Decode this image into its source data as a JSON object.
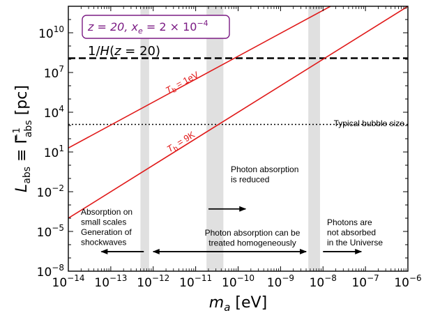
{
  "chart_data": {
    "type": "line",
    "xlabel": "m_a [eV]",
    "ylabel": "L_abs ≡ Γ_abs^-1 [pc]",
    "x_scale": "log",
    "y_scale": "log",
    "xlim": [
      1e-14,
      1e-06
    ],
    "ylim": [
      1e-08,
      1000000000000.0
    ],
    "x_ticks": [
      {
        "value": 1e-14,
        "base": "10",
        "exp": "−14"
      },
      {
        "value": 1e-13,
        "base": "10",
        "exp": "−13"
      },
      {
        "value": 1e-12,
        "base": "10",
        "exp": "−12"
      },
      {
        "value": 1e-11,
        "base": "10",
        "exp": "−11"
      },
      {
        "value": 1e-10,
        "base": "10",
        "exp": "−10"
      },
      {
        "value": 1e-09,
        "base": "10",
        "exp": "−9"
      },
      {
        "value": 1e-08,
        "base": "10",
        "exp": "−8"
      },
      {
        "value": 1e-07,
        "base": "10",
        "exp": "−7"
      },
      {
        "value": 1e-06,
        "base": "10",
        "exp": "−6"
      }
    ],
    "y_ticks": [
      {
        "value": 1e-08,
        "base": "10",
        "exp": "−8"
      },
      {
        "value": 1e-05,
        "base": "10",
        "exp": "−5"
      },
      {
        "value": 0.01,
        "base": "10",
        "exp": "−2"
      },
      {
        "value": 10,
        "base": "10",
        "exp": "1"
      },
      {
        "value": 10000.0,
        "base": "10",
        "exp": "4"
      },
      {
        "value": 10000000.0,
        "base": "10",
        "exp": "7"
      },
      {
        "value": 10000000000.0,
        "base": "10",
        "exp": "10"
      }
    ],
    "series": [
      {
        "name": "T_b = 1eV",
        "label_main": "T",
        "label_sub": "b",
        "label_rest": " = 1eV",
        "color": "#e01919",
        "x": [
          1e-14,
          1.5e-08
        ],
        "y": [
          20,
          1000000000000.0
        ]
      },
      {
        "name": "T_b = 9K",
        "label_main": "T",
        "label_sub": "b",
        "label_rest": " = 9K",
        "color": "#e01919",
        "x": [
          1e-14,
          1e-06
        ],
        "y": [
          0.0001,
          1000000000000.0
        ]
      }
    ],
    "reference_lines": [
      {
        "name": "1/H(z = 20)",
        "y": 120000000.0,
        "style": "dashed",
        "color": "#000000"
      },
      {
        "name": "Typical bubble size",
        "y": 1200.0,
        "style": "dotted",
        "color": "#000000"
      }
    ],
    "shaded_bands": [
      {
        "x": [
          5e-13,
          8e-13
        ],
        "color": "#e0e0e0"
      },
      {
        "x": [
          1.8e-11,
          4.5e-11
        ],
        "color": "#e0e0e0"
      },
      {
        "x": [
          4.5e-09,
          8.5e-09
        ],
        "color": "#e0e0e0"
      }
    ],
    "box_label": {
      "z": "z = 20,",
      "xe": "x",
      "xe_sub": "e",
      "xe_rest": " = 2 × 10",
      "xe_exp": "−4",
      "border_color": "#7b1b84"
    },
    "hubble_label": "1/H(z = 20)",
    "bubble_label": "Typical bubble size",
    "annotations": {
      "left_region": [
        "Absorption on",
        "small scales",
        "Generation of",
        "shockwaves"
      ],
      "middle_region": [
        "Photon absorption can be",
        "treated homogeneously"
      ],
      "right_region": [
        "Photons are",
        "not absorbed",
        "in the Universe"
      ],
      "reduced": [
        "Photon absorption",
        "is reduced"
      ]
    },
    "arrows": [
      {
        "name": "left-arrow",
        "from": 6e-13,
        "to": 6e-14,
        "y": 3e-07
      },
      {
        "name": "middle-double-arrow",
        "from": 1e-12,
        "to": 4e-09,
        "y": 3e-07
      },
      {
        "name": "right-arrow",
        "from": 1e-08,
        "to": 8e-08,
        "y": 3e-07
      },
      {
        "name": "reduced-arrow",
        "from": 2e-11,
        "to": 1.5e-10,
        "y": 0.0005
      }
    ]
  }
}
